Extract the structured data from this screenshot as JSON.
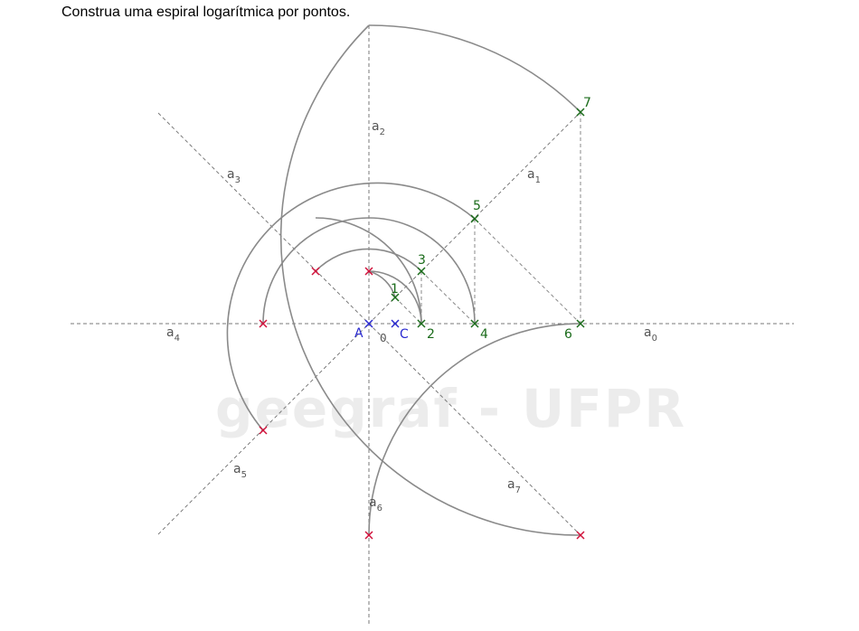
{
  "instruction": "Construa uma espiral logarítmica por pontos.",
  "watermark": "geegraf - UFPR",
  "points": {
    "A": "A",
    "O": "0",
    "C": "C",
    "p1": "1",
    "p2": "2",
    "p3": "3",
    "p4": "4",
    "p5": "5",
    "p6": "6",
    "p7": "7"
  },
  "axes": {
    "a0": {
      "base": "a",
      "sub": "0"
    },
    "a1": {
      "base": "a",
      "sub": "1"
    },
    "a2": {
      "base": "a",
      "sub": "2"
    },
    "a3": {
      "base": "a",
      "sub": "3"
    },
    "a4": {
      "base": "a",
      "sub": "4"
    },
    "a5": {
      "base": "a",
      "sub": "5"
    },
    "a6": {
      "base": "a",
      "sub": "6"
    },
    "a7": {
      "base": "a",
      "sub": "7"
    }
  },
  "colors": {
    "green": "#1a6b1a",
    "red": "#d0103a",
    "blue": "#2a2ad0",
    "gray": "#8a8a8a"
  }
}
